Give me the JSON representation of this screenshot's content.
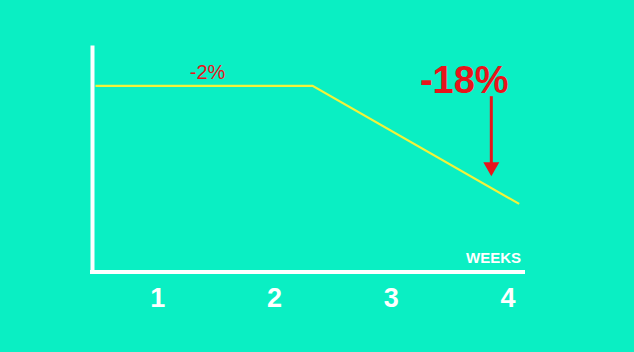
{
  "chart_data": {
    "type": "line",
    "xlabel": "WEEKS",
    "x": [
      0.47,
      2.33,
      4.1
    ],
    "values": [
      82,
      82,
      30
    ],
    "color": "#f2f23a",
    "xlim": [
      0.44,
      4.15
    ],
    "xticks": [
      1,
      2,
      3,
      4
    ],
    "ylim": [
      0,
      100
    ],
    "tick_labels": "x",
    "annotations": [
      {
        "text": "-2%",
        "x": 1.43,
        "y": 88
      },
      {
        "text": "-18%",
        "x": 3.63,
        "y": 84.5
      }
    ]
  }
}
